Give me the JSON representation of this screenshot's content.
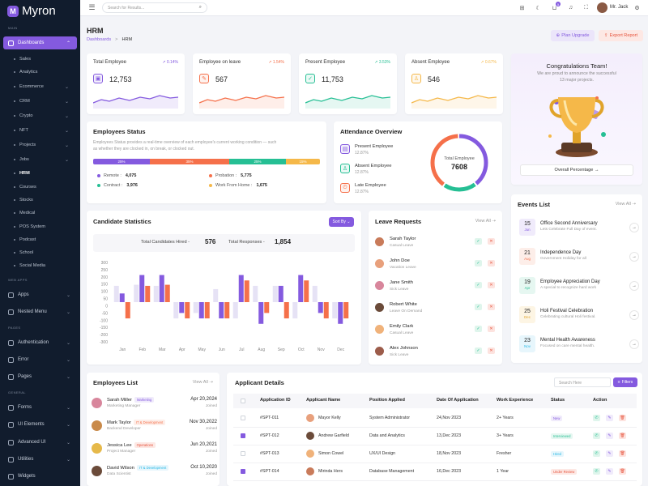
{
  "brand": {
    "name": "Myron",
    "accent": "#845adf"
  },
  "sidebar": {
    "sections": [
      "MAIN",
      "WEB APPS",
      "PAGES",
      "GENERAL"
    ],
    "dashboards_label": "Dashboards",
    "sub_items": [
      "Sales",
      "Analytics",
      "Ecommerce",
      "CRM",
      "Crypto",
      "NFT",
      "Projects",
      "Jobs",
      "HRM",
      "Courses",
      "Stocks",
      "Medical",
      "POS System",
      "Podcast",
      "School",
      "Social Media"
    ],
    "apps": [
      "Apps",
      "Nested Menu"
    ],
    "pages": [
      "Authentication",
      "Error",
      "Pages"
    ],
    "general": [
      "Forms",
      "UI Elements",
      "Advanced UI",
      "Utilities",
      "Widgets"
    ]
  },
  "topbar": {
    "search_placeholder": "Search for Results...",
    "cart_count": "5",
    "user_name": "Mr. Jack"
  },
  "page": {
    "title": "HRM",
    "breadcrumb_root": "Dashboards",
    "breadcrumb_sep": ">",
    "breadcrumb_current": "HRM",
    "plan_upgrade": "Plan Upgrade",
    "export_report": "Export Report"
  },
  "stats": [
    {
      "label": "Total Employee",
      "change": "0.14%",
      "value": "12,753",
      "color": "#845adf",
      "icon": "▣"
    },
    {
      "label": "Employee on leave",
      "change": "1.54%",
      "value": "567",
      "color": "#f5704a",
      "icon": "✎"
    },
    {
      "label": "Present Employee",
      "change": "3.53%",
      "value": "11,753",
      "color": "#26bf94",
      "icon": "✓"
    },
    {
      "label": "Absent Employee",
      "change": "0.67%",
      "value": "546",
      "color": "#f5b849",
      "icon": "♙"
    }
  ],
  "congrats": {
    "title": "Congratulations Team!",
    "text1": "We are proud to announce the successful",
    "text2": "13 major projects.",
    "button": "Overall Percentage →"
  },
  "employees_status": {
    "title": "Employees Status",
    "desc1": "Employees Status provides a real-time overview of each employee's current working condition — such",
    "desc2": "as whether they are clocked in, on break, or clocked out.",
    "bar": [
      {
        "label": "25%",
        "pct": 25,
        "color": "#845adf"
      },
      {
        "label": "35%",
        "pct": 35,
        "color": "#f5704a"
      },
      {
        "label": "25%",
        "pct": 25,
        "color": "#26bf94"
      },
      {
        "label": "15%",
        "pct": 15,
        "color": "#f5b849"
      }
    ],
    "legend": [
      {
        "label": "Remote :",
        "value": "4,075",
        "color": "#845adf"
      },
      {
        "label": "Probation :",
        "value": "5,775",
        "color": "#f5704a"
      },
      {
        "label": "Contract :",
        "value": "3,976",
        "color": "#26bf94"
      },
      {
        "label": "Work From Home :",
        "value": "1,675",
        "color": "#f5b849"
      }
    ]
  },
  "attendance": {
    "title": "Attendance Overview",
    "rows": [
      {
        "label": "Present Employee",
        "pct": "12.87%",
        "color": "#845adf",
        "icon": "▤"
      },
      {
        "label": "Absent Employee",
        "pct": "12.87%",
        "color": "#26bf94",
        "icon": "♙"
      },
      {
        "label": "Late Employee",
        "pct": "12.87%",
        "color": "#f5704a",
        "icon": "⏲"
      }
    ],
    "donut_label": "Total Employee",
    "donut_value": "7608",
    "donut_segments": [
      40,
      20,
      40
    ]
  },
  "candidate": {
    "title": "Candidate Statistics",
    "sort_by": "Sort By ⌄",
    "hired_label": "Total Candidates Hired -",
    "hired_value": "576",
    "responses_label": "Total Responses -",
    "responses_value": "1,854"
  },
  "chart_data": {
    "type": "bar",
    "title": "Candidate Statistics",
    "categories": [
      "Jan",
      "Feb",
      "Mar",
      "Apr",
      "May",
      "Jun",
      "Jul",
      "Aug",
      "Sep",
      "Oct",
      "Nov",
      "Dec"
    ],
    "ylim": [
      -300,
      300
    ],
    "yticks": [
      300,
      250,
      200,
      150,
      100,
      50,
      0,
      -50,
      -100,
      -150,
      -200,
      -300
    ],
    "series": [
      {
        "name": "Light",
        "color": "#e6e2f5",
        "values": [
          150,
          160,
          150,
          -150,
          -100,
          120,
          -150,
          150,
          150,
          -150,
          150,
          -150
        ]
      },
      {
        "name": "Purple",
        "color": "#845adf",
        "values": [
          80,
          250,
          250,
          -100,
          -150,
          -150,
          250,
          -200,
          150,
          250,
          -100,
          -200
        ]
      },
      {
        "name": "Orange",
        "color": "#f5704a",
        "values": [
          -150,
          150,
          160,
          -150,
          -150,
          -150,
          200,
          -100,
          -150,
          200,
          -150,
          -150
        ]
      }
    ]
  },
  "leave": {
    "title": "Leave Requests",
    "view_all": "View All ⇢",
    "rows": [
      {
        "name": "Sarah Taylor",
        "type": "Casual Leave",
        "color": "#c97b5a"
      },
      {
        "name": "John Doe",
        "type": "Vacation Leave",
        "color": "#e8a07c"
      },
      {
        "name": "Jane Smith",
        "type": "Sick Leave",
        "color": "#d8869c"
      },
      {
        "name": "Robert White",
        "type": "Leave On Demand",
        "color": "#6b4b3a"
      },
      {
        "name": "Emily Clark",
        "type": "Casual Leave",
        "color": "#f0b27a"
      },
      {
        "name": "Alex Johnson",
        "type": "Sick Leave",
        "color": "#9c5c4a"
      }
    ]
  },
  "events": {
    "title": "Events List",
    "view_all": "View All ⇢",
    "rows": [
      {
        "day": "15",
        "month": "Jun",
        "title": "Office Second Anniversary",
        "desc": "Lets Celebrate Full Day of event.",
        "color": "#845adf",
        "bg": "#f0ebfb"
      },
      {
        "day": "21",
        "month": "Aug",
        "title": "Independence Day",
        "desc": "Government Holiday for all",
        "color": "#f5704a",
        "bg": "#fdeee9"
      },
      {
        "day": "19",
        "month": "Apr",
        "title": "Employee Appreciation Day",
        "desc": "A special to recognize hard work",
        "color": "#26bf94",
        "bg": "#e6f7f1"
      },
      {
        "day": "25",
        "month": "Dec",
        "title": "Holi Festival Celebration",
        "desc": "Celebrating cultural Holi festival.",
        "color": "#e0a32a",
        "bg": "#fdf5e4"
      },
      {
        "day": "23",
        "month": "Nov",
        "title": "Mental Health Awareness",
        "desc": "Focused on care mental health.",
        "color": "#23b7e5",
        "bg": "#e7f6fc"
      }
    ]
  },
  "employees_list": {
    "title": "Employees List",
    "view_all": "View All ⇢",
    "rows": [
      {
        "name": "Sarah Miller",
        "tag": "Marketing",
        "role": "Marketing Manager",
        "date": "Apr 20,2024",
        "joined": "Joined",
        "tag_color": "#845adf",
        "tag_bg": "#f0ebfb",
        "avatar": "#d8869c"
      },
      {
        "name": "Mark Taylor",
        "tag": "IT & Development",
        "role": "Backend Developer",
        "date": "Nov 30,2022",
        "joined": "Joined",
        "tag_color": "#f5704a",
        "tag_bg": "#fdeee9",
        "avatar": "#c98a4a"
      },
      {
        "name": "Jessica Lee",
        "tag": "Operations",
        "role": "Project Manager",
        "date": "Jun 20,2021",
        "joined": "Joined",
        "tag_color": "#e6533c",
        "tag_bg": "#fde8e4",
        "avatar": "#e6b94a"
      },
      {
        "name": "David Wilson",
        "tag": "IT & Development",
        "role": "Data Scientist",
        "date": "Oct 10,2020",
        "joined": "Joined",
        "tag_color": "#23b7e5",
        "tag_bg": "#e7f6fc",
        "avatar": "#6b4b3a"
      }
    ]
  },
  "applicants": {
    "title": "Applicant Details",
    "search_placeholder": "Search Here",
    "filters": "Filters",
    "headers": [
      "Application ID",
      "Applicant Name",
      "Position Applied",
      "Date Of Application",
      "Work Experience",
      "Status",
      "Action"
    ],
    "rows": [
      {
        "id": "#SPT-011",
        "name": "Mayor Kelly",
        "position": "System Administrator",
        "date": "24,Nov 2023",
        "exp": "2+ Years",
        "status": "New",
        "status_color": "#845adf",
        "status_bg": "#f0ebfb",
        "checked": false,
        "avatar": "#e8a07c"
      },
      {
        "id": "#SPT-012",
        "name": "Andrew Garfield",
        "position": "Data and Analytics",
        "date": "13,Dec 2023",
        "exp": "3+ Years",
        "status": "Interviewed",
        "status_color": "#26bf94",
        "status_bg": "#e6f7f1",
        "checked": true,
        "avatar": "#6b4b3a"
      },
      {
        "id": "#SPT-013",
        "name": "Simon Cowel",
        "position": "UX/UI Design",
        "date": "18,Nov 2023",
        "exp": "Fresher",
        "status": "Hired",
        "status_color": "#23b7e5",
        "status_bg": "#e7f6fc",
        "checked": false,
        "avatar": "#f0b27a"
      },
      {
        "id": "#SPT-014",
        "name": "Mirinda Hers",
        "position": "Database Management",
        "date": "16,Dec 2023",
        "exp": "1 Year",
        "status": "Under Review",
        "status_color": "#e6533c",
        "status_bg": "#fde8e4",
        "checked": true,
        "avatar": "#c97b5a"
      }
    ]
  }
}
